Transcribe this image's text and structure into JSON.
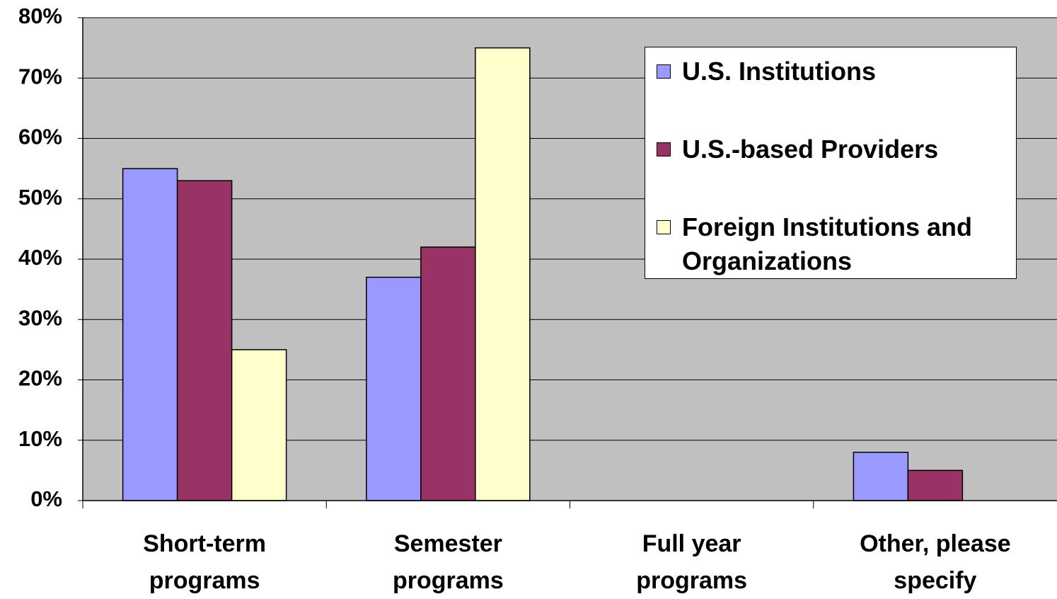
{
  "chart_data": {
    "type": "bar",
    "categories": [
      "Short-term programs",
      "Semester programs",
      "Full year programs",
      "Other, please specify"
    ],
    "series": [
      {
        "name": "U.S. Institutions",
        "color": "#9999ff",
        "values": [
          55,
          37,
          0,
          8
        ]
      },
      {
        "name": "U.S.-based Providers",
        "color": "#993366",
        "values": [
          53,
          42,
          0,
          5
        ]
      },
      {
        "name": "Foreign Institutions and Organizations",
        "color": "#ffffcc",
        "values": [
          25,
          75,
          0,
          0
        ]
      }
    ],
    "ylim": [
      0,
      80
    ],
    "yticks": [
      {
        "value": 0,
        "label": "0%"
      },
      {
        "value": 10,
        "label": "10%"
      },
      {
        "value": 20,
        "label": "20%"
      },
      {
        "value": 30,
        "label": "30%"
      },
      {
        "value": 40,
        "label": "40%"
      },
      {
        "value": 50,
        "label": "50%"
      },
      {
        "value": 60,
        "label": "60%"
      },
      {
        "value": 70,
        "label": "70%"
      },
      {
        "value": 80,
        "label": "80%"
      }
    ],
    "grid": true,
    "plot_background": "#c0c0c0",
    "legend": "top-right"
  }
}
